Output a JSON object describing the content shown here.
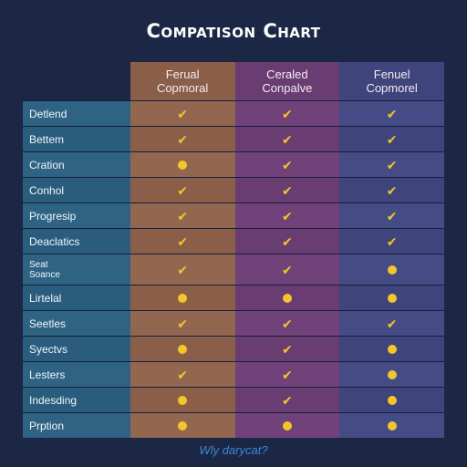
{
  "title": "Compatison Chart",
  "columns": [
    {
      "line1": "Ferual",
      "line2": "Copmoral"
    },
    {
      "line1": "Ceraled",
      "line2": "Conpalve"
    },
    {
      "line1": "Fenuel",
      "line2": "Copmorel"
    }
  ],
  "rows": [
    {
      "label": "Detlend",
      "label2": "",
      "marks": [
        "check",
        "check",
        "check"
      ]
    },
    {
      "label": "Bettem",
      "label2": "",
      "marks": [
        "check",
        "check",
        "check"
      ]
    },
    {
      "label": "Cration",
      "label2": "",
      "marks": [
        "dot",
        "check",
        "check"
      ]
    },
    {
      "label": "Conhol",
      "label2": "",
      "marks": [
        "check",
        "check",
        "check"
      ]
    },
    {
      "label": "Progresip",
      "label2": "",
      "marks": [
        "check",
        "check",
        "check"
      ]
    },
    {
      "label": "Deaclatics",
      "label2": "",
      "marks": [
        "check",
        "check",
        "check"
      ]
    },
    {
      "label": "Seat",
      "label2": "Soance",
      "marks": [
        "check",
        "check",
        "dot"
      ]
    },
    {
      "label": "Lirtelal",
      "label2": "",
      "marks": [
        "dot",
        "dot",
        "dot"
      ]
    },
    {
      "label": "Seetles",
      "label2": "",
      "marks": [
        "check",
        "check",
        "check"
      ]
    },
    {
      "label": "Syectvs",
      "label2": "",
      "marks": [
        "dot",
        "check",
        "dot"
      ]
    },
    {
      "label": "Lesters",
      "label2": "",
      "marks": [
        "check",
        "check",
        "dot"
      ]
    },
    {
      "label": "Indesding",
      "label2": "",
      "marks": [
        "dot",
        "check",
        "dot"
      ]
    },
    {
      "label": "Prption",
      "label2": "",
      "marks": [
        "dot",
        "dot",
        "dot"
      ]
    }
  ],
  "footer": "Wly darycat?",
  "colors": {
    "background": "#1b2745",
    "column1": "#8a5e48",
    "column2": "#6a3d72",
    "column3": "#3f447c",
    "label_column": "#2a5d7d",
    "mark": "#f3c62a",
    "footer_text": "#3b87d6"
  }
}
